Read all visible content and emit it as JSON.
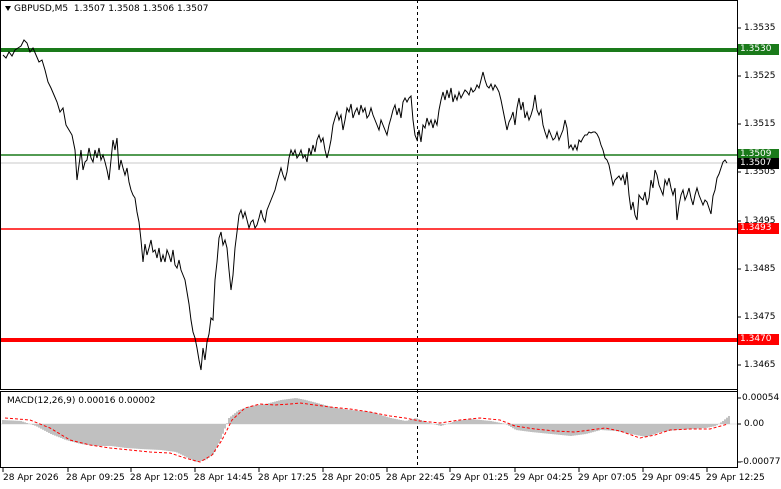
{
  "header": {
    "dropdown_icon": "triangle-down-icon",
    "symbol": "GBPUSD,M5",
    "ohlc": "1.3507 1.3508 1.3506 1.3507"
  },
  "price_axis": {
    "ticks": [
      "1.3535",
      "1.3525",
      "1.3515",
      "1.3505",
      "1.3495",
      "1.3485",
      "1.3475",
      "1.3465"
    ]
  },
  "levels": [
    {
      "price": "1.3530",
      "color": "#1a7a1a"
    },
    {
      "price": "1.3509",
      "color": "#1a7a1a"
    },
    {
      "price": "1.3493",
      "color": "#ff0000"
    },
    {
      "price": "1.3470",
      "color": "#ff0000"
    }
  ],
  "current_price": {
    "label": "1.3507",
    "color": "#000000"
  },
  "time_axis": {
    "ticks": [
      "28 Apr 2026",
      "28 Apr 09:25",
      "28 Apr 12:05",
      "28 Apr 14:45",
      "28 Apr 17:25",
      "28 Apr 20:05",
      "28 Apr 22:45",
      "29 Apr 01:25",
      "29 Apr 04:25",
      "29 Apr 07:05",
      "29 Apr 09:45",
      "29 Apr 12:25"
    ]
  },
  "macd": {
    "title": "MACD(12,26,9) 0.00016 0.00002",
    "axis_ticks": [
      "0.00054",
      "0.00",
      "-0.00077"
    ],
    "histogram_color": "#c0c0c0",
    "signal_color": "#ff0000"
  },
  "colors": {
    "price_line": "#000000",
    "grid_separator": "#000000",
    "background": "#ffffff"
  }
}
